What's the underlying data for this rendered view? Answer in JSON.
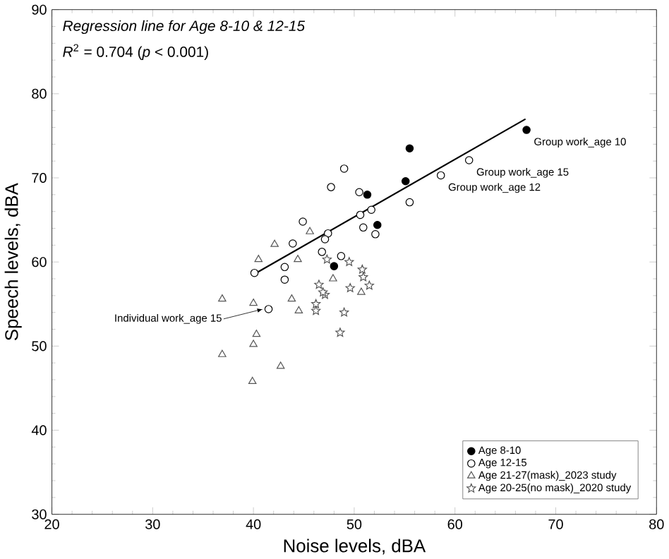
{
  "chart_data": {
    "type": "scatter",
    "xlabel": "Noise levels, dBA",
    "ylabel": "Speech levels, dBA",
    "xlim": [
      20,
      80
    ],
    "ylim": [
      30,
      90
    ],
    "xticks": [
      20,
      30,
      40,
      50,
      60,
      70,
      80
    ],
    "yticks": [
      30,
      40,
      50,
      60,
      70,
      80,
      90
    ],
    "legend": "bottom right",
    "grid": false,
    "annotations": [
      "*Regression line for Age 8-10 & 12-15*",
      "*R*$^{2}$ = 0.704 (*p* < 0.001)",
      {
        "text": "Group work_age 10",
        "x": 67.1,
        "y": 75.7
      },
      {
        "text": "Group work_age 15",
        "x": 61.4,
        "y": 72.1
      },
      {
        "text": "Group work_age 12",
        "x": 58.6,
        "y": 70.3
      },
      {
        "text": "Individual work_age 15",
        "x": 41.5,
        "y": 54.4
      }
    ],
    "series": [
      {
        "name": "Age 8-10",
        "color": "#000000",
        "marker": "circle",
        "x": [
          67.1,
          55.5,
          55.1,
          51.3,
          52.3,
          48.0
        ],
        "values": [
          75.7,
          73.5,
          69.6,
          68.0,
          64.4,
          59.5
        ]
      },
      {
        "name": "Age 12-15",
        "color": "#000000",
        "marker": "circle",
        "x": [
          61.4,
          58.6,
          55.5,
          49.0,
          47.7,
          50.5,
          51.7,
          50.6,
          50.9,
          52.1,
          47.4,
          47.1,
          48.7,
          46.8,
          44.9,
          43.9,
          40.1,
          43.1,
          43.1,
          41.5
        ],
        "values": [
          72.1,
          70.3,
          67.1,
          71.1,
          68.9,
          68.3,
          66.2,
          65.6,
          64.1,
          63.3,
          63.4,
          62.7,
          60.7,
          61.2,
          64.8,
          62.2,
          58.7,
          59.4,
          57.9,
          54.4
        ]
      },
      {
        "name": "Age 21-27(mask)_2023 study",
        "color": "#555555",
        "marker": "triangle",
        "x": [
          45.6,
          42.1,
          40.5,
          44.4,
          47.9,
          36.9,
          40.0,
          43.8,
          44.5,
          40.3,
          40.0,
          36.9,
          42.7,
          39.9,
          50.7
        ],
        "values": [
          63.6,
          62.1,
          60.3,
          60.3,
          58.0,
          55.6,
          55.1,
          55.6,
          54.2,
          51.4,
          50.2,
          49.0,
          47.6,
          45.8,
          56.4
        ]
      },
      {
        "name": "Age 20-25(no mask)_2020 study",
        "color": "#555555",
        "marker": "star",
        "x": [
          49.5,
          50.8,
          50.9,
          51.5,
          49.6,
          47.1,
          49.0,
          48.6,
          47.3,
          46.5,
          46.9,
          46.2,
          46.2
        ],
        "values": [
          60.0,
          59.1,
          58.2,
          57.2,
          56.9,
          56.1,
          54.0,
          51.6,
          60.3,
          57.3,
          56.4,
          55.0,
          54.2
        ]
      },
      {
        "type": "line",
        "color": "#000000",
        "marker": "none",
        "line_style": "solid",
        "x": [
          40,
          67
        ],
        "values": [
          58.5,
          77.0
        ]
      }
    ]
  }
}
